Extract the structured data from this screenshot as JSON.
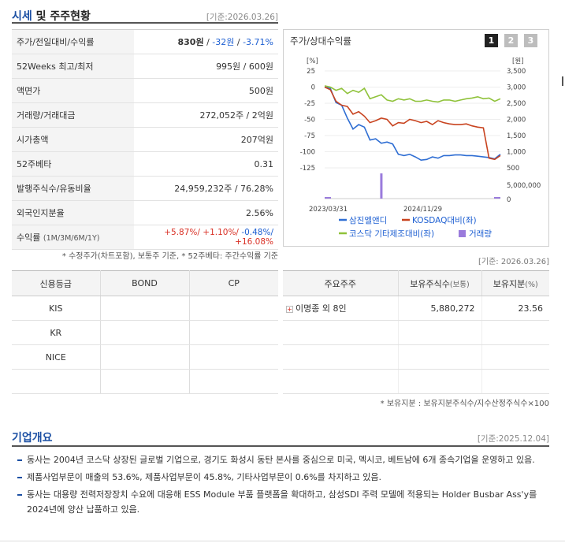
{
  "header": {
    "title_main": "시세",
    "title_rest": " 및 주주현황",
    "base_date": "[기준:2026.03.26]"
  },
  "quote": {
    "price_label": "주가/전일대비/수익률",
    "price": "830원",
    "change": "-32원",
    "change_pct": "-3.71%",
    "w52_label": "52Weeks 최고/최저",
    "w52_value": "995원 / 600원",
    "face_label": "액면가",
    "face_value": "500원",
    "volume_label": "거래량/거래대금",
    "volume_value": "272,052주 / 2억원",
    "mcap_label": "시가총액",
    "mcap_value": "207억원",
    "beta_label": "52주베타",
    "beta_value": "0.31",
    "shares_label": "발행주식수/유동비율",
    "shares_value": "24,959,232주 / 76.28%",
    "foreign_label": "외국인지분율",
    "foreign_value": "2.56%",
    "return_label": "수익률",
    "return_sub": "(1M/3M/6M/1Y)",
    "return_1m": "+5.87%/",
    "return_3m": "+1.10%/",
    "return_6m": "-0.48%/",
    "return_1y": "+16.08%",
    "note": "* 수정주가(차트포함), 보통주 기준, * 52주베타: 주간수익률 기준"
  },
  "chart_panel": {
    "title": "주가/상대수익률",
    "pages": [
      "1",
      "2",
      "3"
    ]
  },
  "chart_data": {
    "type": "line",
    "x_labels": [
      "2023/03/31",
      "2024/11/29"
    ],
    "left_unit": "[%]",
    "right_unit": "[원]",
    "left_ticks": [
      "25",
      "0",
      "-25",
      "-50",
      "-75",
      "-100",
      "-125"
    ],
    "right_ticks": [
      "3,500",
      "3,000",
      "2,500",
      "2,000",
      "1,500",
      "1,000",
      "500"
    ],
    "volume_ticks": [
      "5,000,000",
      "0"
    ],
    "series": [
      {
        "name": "삼진엘앤디",
        "color": "#2f6ed3",
        "values": [
          0,
          -2,
          -24,
          -28,
          -48,
          -65,
          -58,
          -62,
          -82,
          -80,
          -87,
          -85,
          -88,
          -104,
          -106,
          -104,
          -108,
          -113,
          -112,
          -108,
          -110,
          -106,
          -106,
          -105,
          -105,
          -106,
          -106,
          -107,
          -108,
          -109,
          -111,
          -104
        ]
      },
      {
        "name": "KOSDAQ대비(좌)",
        "color": "#c8431f",
        "values": [
          0,
          -4,
          -22,
          -28,
          -30,
          -42,
          -38,
          -45,
          -55,
          -52,
          -48,
          -50,
          -60,
          -55,
          -56,
          -50,
          -52,
          -55,
          -53,
          -58,
          -52,
          -55,
          -57,
          -58,
          -58,
          -57,
          -60,
          -62,
          -63,
          -110,
          -112,
          -106
        ]
      },
      {
        "name": "코스닥 기타제조대비(좌)",
        "color": "#8fc23a",
        "values": [
          2,
          0,
          -5,
          -2,
          -10,
          -5,
          -8,
          -2,
          -18,
          -15,
          -12,
          -20,
          -22,
          -18,
          -20,
          -18,
          -22,
          -22,
          -20,
          -22,
          -23,
          -20,
          -20,
          -22,
          -20,
          -18,
          -17,
          -15,
          -18,
          -17,
          -22,
          -18
        ]
      },
      {
        "name": "거래량",
        "color": "#9a7bdc",
        "type": "bar",
        "spike_index": 10,
        "spike_value": 5200000
      }
    ],
    "ylim_left": [
      -125,
      25
    ],
    "legend_position": "bottom"
  },
  "credit": {
    "headers": [
      "신용등급",
      "BOND",
      "CP"
    ],
    "rows": [
      {
        "agency": "KIS",
        "bond": "",
        "cp": ""
      },
      {
        "agency": "KR",
        "bond": "",
        "cp": ""
      },
      {
        "agency": "NICE",
        "bond": "",
        "cp": ""
      },
      {
        "agency": "",
        "bond": "",
        "cp": ""
      }
    ]
  },
  "holders": {
    "base_date": "[기준: 2026.03.26]",
    "headers": [
      "주요주주",
      "보유주식수",
      "(보통)",
      "보유지분",
      "(%)"
    ],
    "rows": [
      {
        "name": "이명종 외 8인",
        "shares": "5,880,272",
        "pct": "23.56"
      }
    ],
    "note": "* 보유지분 : 보유지분주식수/지수산정주식수×100"
  },
  "overview": {
    "title": "기업개요",
    "base_date": "[기준:2025.12.04]",
    "items": [
      "동사는 2004년 코스닥 상장된 글로벌 기업으로, 경기도 화성시 동탄 본사를 중심으로 미국, 멕시코, 베트남에 6개 종속기업을 운영하고 있음.",
      "제품사업부문이 매출의 53.6%, 제품사업부문이 45.8%, 기타사업부문이 0.6%를 차지하고 있음.",
      "동사는 대용량 전력저장장치 수요에 대응해 ESS Module 부품 플랫폼을 확대하고, 삼성SDI 주력 모델에 적용되는 Holder Busbar Ass'y를 2024년에 양산 납품하고 있음."
    ]
  }
}
